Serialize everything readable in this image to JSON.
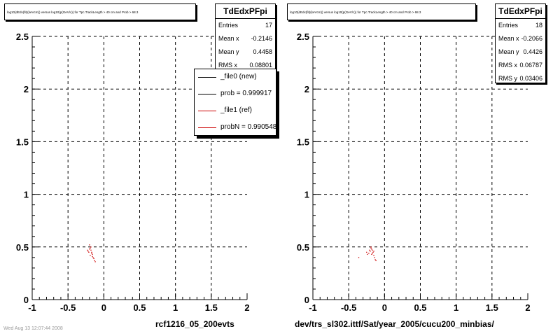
{
  "panels": [
    {
      "title": "log10(dEdx(fit)(keVcm)) versus log10(p(GeV/c)) for Tpc.TrackLength > 40 cm and Prob > 68.3",
      "stats": {
        "name": "TdEdxPFpi",
        "rows": [
          {
            "label": "Entries",
            "value": "17"
          },
          {
            "label": "Mean x",
            "value": "-0.2146"
          },
          {
            "label": "Mean y",
            "value": "0.4458"
          },
          {
            "label": "RMS x",
            "value": "0.08801"
          }
        ]
      },
      "footer": "rcf1216_05_200evts"
    },
    {
      "title": "log10(dEdx(fit)(keVcm)) versus log10(p(GeV/c)) for Tpc.TrackLength > 40 cm and Prob > 68.3",
      "stats": {
        "name": "TdEdxPFpi",
        "rows": [
          {
            "label": "Entries",
            "value": "18"
          },
          {
            "label": "Mean x",
            "value": "-0.2066"
          },
          {
            "label": "Mean y",
            "value": "0.4426"
          },
          {
            "label": "RMS x",
            "value": "0.06787"
          },
          {
            "label": "RMS y",
            "value": "0.03406"
          }
        ]
      },
      "footer": "dev/trs_sl302.ittf/Sat/year_2005/cucu200_minbias/"
    }
  ],
  "legend": {
    "entries": [
      {
        "label": "_file0 (new)",
        "color": "#000000"
      },
      {
        "label": "prob = 0.999917",
        "color": "#000000"
      },
      {
        "label": "_file1 (ref)",
        "color": "#cc0000"
      },
      {
        "label": "probN = 0.990548",
        "color": "#cc0000"
      }
    ]
  },
  "bottom_note": "Wed Aug 13 12:07:44 2008",
  "chart_data": [
    {
      "type": "scatter",
      "title": "log10(dEdx(fit)(keVcm)) versus log10(p(GeV/c)) for Tpc.TrackLength > 40 cm and Prob > 68.3",
      "xlim": [
        -1,
        2
      ],
      "ylim": [
        0,
        2.5
      ],
      "xticks": [
        "-1",
        "-0.5",
        "0",
        "0.5",
        "1",
        "1.5",
        "2"
      ],
      "yticks": [
        "0",
        "0.5",
        "1",
        "1.5",
        "2",
        "2.5"
      ],
      "grid": true,
      "color": "#cc0000",
      "points": [
        [
          -0.2,
          0.52
        ],
        [
          -0.19,
          0.49
        ],
        [
          -0.18,
          0.47
        ],
        [
          -0.21,
          0.45
        ],
        [
          -0.17,
          0.44
        ],
        [
          -0.19,
          0.42
        ],
        [
          -0.16,
          0.41
        ],
        [
          -0.14,
          0.39
        ],
        [
          -0.13,
          0.37
        ],
        [
          -0.15,
          0.4
        ],
        [
          -0.22,
          0.46
        ],
        [
          -0.18,
          0.5
        ],
        [
          -0.2,
          0.48
        ],
        [
          -0.16,
          0.43
        ],
        [
          -0.12,
          0.36
        ],
        [
          -0.23,
          0.47
        ],
        [
          -0.17,
          0.45
        ]
      ]
    },
    {
      "type": "scatter",
      "title": "log10(dEdx(fit)(keVcm)) versus log10(p(GeV/c)) for Tpc.TrackLength > 40 cm and Prob > 68.3",
      "xlim": [
        -1,
        2
      ],
      "ylim": [
        0,
        2.5
      ],
      "xticks": [
        "-1",
        "-0.5",
        "0",
        "0.5",
        "1",
        "1.5",
        "2"
      ],
      "yticks": [
        "0",
        "0.5",
        "1",
        "1.5",
        "2",
        "2.5"
      ],
      "grid": true,
      "color": "#cc0000",
      "points": [
        [
          -0.19,
          0.5
        ],
        [
          -0.18,
          0.48
        ],
        [
          -0.17,
          0.47
        ],
        [
          -0.2,
          0.46
        ],
        [
          -0.16,
          0.45
        ],
        [
          -0.18,
          0.43
        ],
        [
          -0.15,
          0.42
        ],
        [
          -0.14,
          0.4
        ],
        [
          -0.13,
          0.38
        ],
        [
          -0.22,
          0.44
        ],
        [
          -0.25,
          0.45
        ],
        [
          -0.36,
          0.4
        ],
        [
          -0.19,
          0.49
        ],
        [
          -0.17,
          0.44
        ],
        [
          -0.21,
          0.47
        ],
        [
          -0.15,
          0.46
        ],
        [
          -0.12,
          0.37
        ],
        [
          -0.24,
          0.43
        ]
      ]
    }
  ]
}
